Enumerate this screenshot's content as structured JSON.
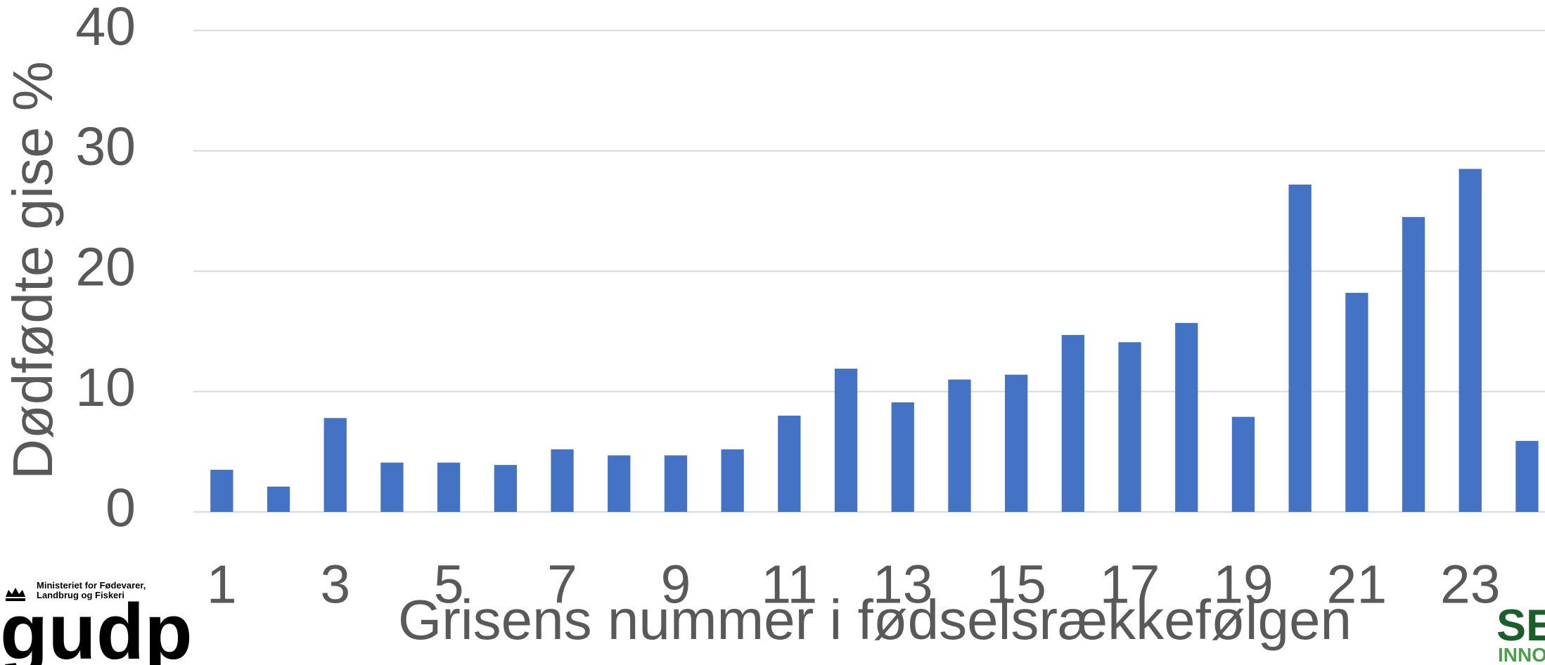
{
  "chart_data": {
    "type": "bar",
    "x_label": "Grisens nummer i fødselsrækkefølgen",
    "y_label": "Dødfødte gise %",
    "categories": [
      "1",
      null,
      "3",
      null,
      "5",
      null,
      "7",
      null,
      "9",
      null,
      "11",
      null,
      "13",
      null,
      "15",
      null,
      "17",
      null,
      "19",
      null,
      "21",
      null,
      "23",
      null
    ],
    "values": [
      3.5,
      2.1,
      7.8,
      4.1,
      4.1,
      3.9,
      5.2,
      4.7,
      4.7,
      5.2,
      8.0,
      11.9,
      9.1,
      11.0,
      11.4,
      14.7,
      14.1,
      15.7,
      7.9,
      27.2,
      18.2,
      24.5,
      28.5,
      5.9
    ],
    "color": "#4472c4",
    "ylim": [
      0,
      40
    ],
    "yticks": [
      0,
      10,
      20,
      30,
      40
    ],
    "grid": true
  },
  "footer": {
    "ministry_line1": "Ministeriet for Fødevarer,",
    "ministry_line2": "Landbrug og Fiskeri",
    "gudp": "gudp",
    "seges": "SE",
    "seges_sub": "INNO"
  }
}
